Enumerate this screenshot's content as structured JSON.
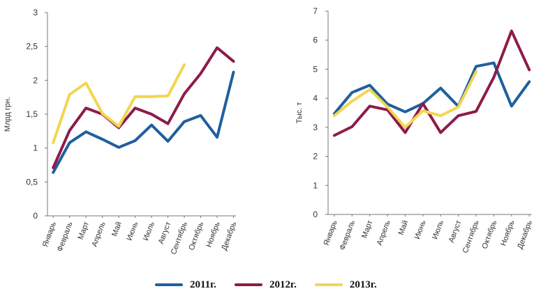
{
  "chart_data": [
    {
      "type": "line",
      "title": "",
      "xlabel": "",
      "ylabel": "Млрд грн.",
      "ylim": [
        0,
        3
      ],
      "yticks": [
        "0",
        "0,5",
        "1",
        "1,5",
        "2",
        "2,5",
        "3"
      ],
      "categories": [
        "Январь",
        "Февраль",
        "Март",
        "Апрель",
        "Май",
        "Июнь",
        "Июль",
        "Август",
        "Сентябрь",
        "Октябрь",
        "Ноябрь",
        "Декабрь"
      ],
      "grid": false,
      "series": [
        {
          "name": "2011г.",
          "color": "#1f5f9e",
          "values": [
            0.64,
            1.08,
            1.24,
            1.13,
            1.01,
            1.11,
            1.34,
            1.1,
            1.39,
            1.48,
            1.16,
            2.12
          ]
        },
        {
          "name": "2012г.",
          "color": "#8e1b4a",
          "values": [
            0.71,
            1.26,
            1.59,
            1.5,
            1.3,
            1.59,
            1.5,
            1.36,
            1.8,
            2.1,
            2.48,
            2.28
          ]
        },
        {
          "name": "2013г.",
          "color": "#f2d652",
          "values": [
            1.08,
            1.79,
            1.96,
            1.51,
            1.32,
            1.76,
            1.76,
            1.77,
            2.23,
            null,
            null,
            null
          ]
        }
      ]
    },
    {
      "type": "line",
      "title": "",
      "xlabel": "",
      "ylabel": "Тыс. т",
      "ylim": [
        0,
        7
      ],
      "yticks": [
        "0",
        "1",
        "2",
        "3",
        "4",
        "5",
        "6",
        "7"
      ],
      "categories": [
        "Январь",
        "Февраль",
        "Март",
        "Апрель",
        "Май",
        "Июнь",
        "Июль",
        "Август",
        "Сентябрь",
        "Октябрь",
        "Ноябрь",
        "Декабрь"
      ],
      "grid": false,
      "series": [
        {
          "name": "2011г.",
          "color": "#1f5f9e",
          "values": [
            3.47,
            4.2,
            4.45,
            3.8,
            3.53,
            3.82,
            4.35,
            3.72,
            5.1,
            5.22,
            3.73,
            4.57
          ]
        },
        {
          "name": "2012г.",
          "color": "#8e1b4a",
          "values": [
            2.72,
            3.02,
            3.73,
            3.6,
            2.82,
            3.82,
            2.82,
            3.4,
            3.55,
            4.72,
            6.32,
            4.98
          ]
        },
        {
          "name": "2013г.",
          "color": "#f2d652",
          "values": [
            3.4,
            3.9,
            4.3,
            3.7,
            3.0,
            3.57,
            3.4,
            3.7,
            4.92,
            null,
            null,
            null
          ]
        }
      ]
    }
  ],
  "legend": {
    "placement": "bottom",
    "items": [
      {
        "label": "2011г.",
        "color": "#1f5f9e"
      },
      {
        "label": "2012г.",
        "color": "#8e1b4a"
      },
      {
        "label": "2013г.",
        "color": "#f2d652"
      }
    ]
  }
}
